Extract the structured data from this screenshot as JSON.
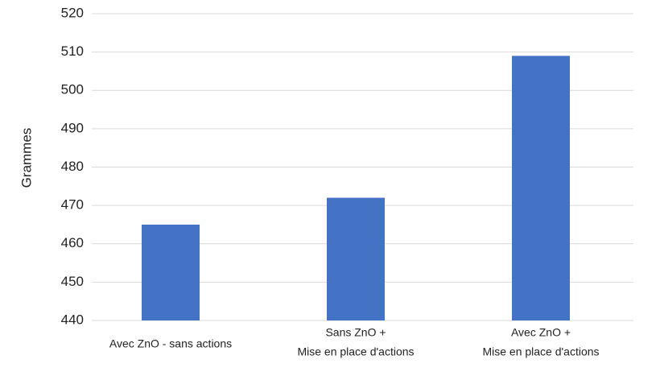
{
  "chart_data": {
    "type": "bar",
    "y_label": "Grammes",
    "categories": [
      [
        "Avec ZnO - sans actions"
      ],
      [
        "Sans ZnO +",
        "Mise en place d'actions"
      ],
      [
        "Avec ZnO +",
        "Mise en place d'actions"
      ]
    ],
    "values": [
      465,
      472,
      509
    ],
    "color": "#4472c4",
    "ylim": [
      440,
      520
    ],
    "yticks": [
      440,
      450,
      460,
      470,
      480,
      490,
      500,
      510,
      520
    ],
    "grid": true
  }
}
